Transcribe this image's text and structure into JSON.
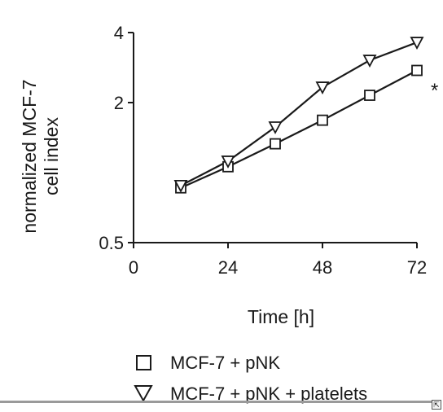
{
  "chart_data": {
    "type": "line",
    "title": "",
    "xlabel": "Time [h]",
    "ylabel": [
      "normalized MCF-7",
      "cell index"
    ],
    "xlim": [
      0,
      72
    ],
    "ylim": [
      0.5,
      4
    ],
    "yscale": "log2",
    "x_ticks": [
      "0",
      "24",
      "48",
      "72"
    ],
    "y_ticks": [
      "0.5",
      "2",
      "4"
    ],
    "x_tick_values": [
      0,
      24,
      48,
      72
    ],
    "y_tick_values": [
      0.5,
      2,
      4
    ],
    "grid": false,
    "legend_position": "bottom",
    "annotation": "*",
    "series": [
      {
        "name": "MCF-7 + pNK",
        "marker": "square",
        "x": [
          12,
          24,
          36,
          48,
          60,
          72
        ],
        "y": [
          0.86,
          1.06,
          1.33,
          1.68,
          2.15,
          2.75
        ]
      },
      {
        "name": "MCF-7 + pNK + platelets",
        "marker": "triangle-down",
        "x": [
          12,
          24,
          36,
          48,
          60,
          72
        ],
        "y": [
          0.88,
          1.12,
          1.57,
          2.33,
          3.04,
          3.63
        ]
      }
    ]
  },
  "ui": {
    "corner_icon": "⇱"
  }
}
